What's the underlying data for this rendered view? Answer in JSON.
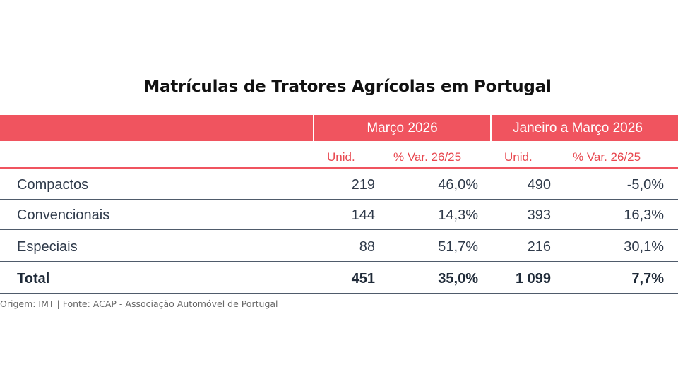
{
  "title": "Matrículas de Tratores Agrícolas em Portugal",
  "header": {
    "period_1": "Março 2026",
    "period_2": "Janeiro a Março 2026",
    "unid": "Unid.",
    "var": "% Var. 26/25"
  },
  "rows": [
    {
      "label": "Compactos",
      "m_unid": "219",
      "m_var": "46,0%",
      "y_unid": "490",
      "y_var": "-5,0%"
    },
    {
      "label": "Convencionais",
      "m_unid": "144",
      "m_var": "14,3%",
      "y_unid": "393",
      "y_var": "16,3%"
    },
    {
      "label": "Especiais",
      "m_unid": "88",
      "m_var": "51,7%",
      "y_unid": "216",
      "y_var": "30,1%"
    }
  ],
  "total": {
    "label": "Total",
    "m_unid": "451",
    "m_var": "35,0%",
    "y_unid": "1 099",
    "y_var": "7,7%"
  },
  "source": "Origem: IMT | Fonte: ACAP - Associação Automóvel de Portugal",
  "colors": {
    "accent": "#f0545f",
    "rule": "#4f5b6b"
  }
}
